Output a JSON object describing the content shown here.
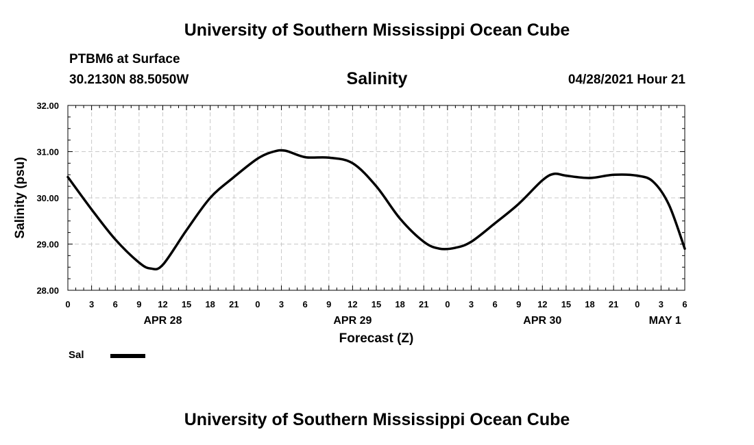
{
  "header": {
    "title": "University of Southern Mississippi Ocean Cube",
    "station": "PTBM6 at Surface",
    "coordinates": "30.2130N  88.5050W",
    "datetime": "04/28/2021 Hour 21"
  },
  "footer": {
    "title": "University of Southern Mississippi Ocean Cube"
  },
  "legend": {
    "label": "Sal",
    "color": "#000000"
  },
  "chart_data": {
    "type": "line",
    "title": "Salinity",
    "xlabel": "Forecast (Z)",
    "ylabel": "Salinity (psu)",
    "ylim": [
      28.0,
      32.0
    ],
    "xlim_hours": [
      0,
      78
    ],
    "y_ticks": [
      "28.00",
      "29.00",
      "30.00",
      "31.00",
      "32.00"
    ],
    "x_tick_hours": [
      0,
      3,
      6,
      9,
      12,
      15,
      18,
      21,
      24,
      27,
      30,
      33,
      36,
      39,
      42,
      45,
      48,
      51,
      54,
      57,
      60,
      63,
      66,
      69,
      72,
      75,
      78
    ],
    "x_tick_labels": [
      "0",
      "3",
      "6",
      "9",
      "12",
      "15",
      "18",
      "21",
      "0",
      "3",
      "6",
      "9",
      "12",
      "15",
      "18",
      "21",
      "0",
      "3",
      "6",
      "9",
      "12",
      "15",
      "18",
      "21",
      "0",
      "3",
      "6"
    ],
    "day_labels": [
      {
        "hour": 12,
        "label": "APR 28"
      },
      {
        "hour": 36,
        "label": "APR 29"
      },
      {
        "hour": 60,
        "label": "APR 30"
      },
      {
        "hour": 75.5,
        "label": "MAY 1"
      }
    ],
    "grid": true,
    "series": [
      {
        "name": "Sal",
        "color": "#000000",
        "x": [
          0,
          3,
          6,
          9,
          10.5,
          12,
          15,
          18,
          21,
          24,
          26,
          27.5,
          30,
          33,
          36,
          39,
          42,
          45,
          47,
          49,
          51,
          54,
          57,
          60,
          61.5,
          63,
          66,
          69,
          72,
          74,
          76,
          78
        ],
        "y": [
          30.45,
          29.75,
          29.1,
          28.6,
          28.47,
          28.55,
          29.3,
          30.0,
          30.45,
          30.85,
          31.0,
          31.02,
          30.88,
          30.87,
          30.75,
          30.25,
          29.55,
          29.05,
          28.9,
          28.92,
          29.05,
          29.45,
          29.87,
          30.38,
          30.52,
          30.48,
          30.43,
          30.5,
          30.48,
          30.35,
          29.85,
          28.9
        ]
      }
    ]
  }
}
